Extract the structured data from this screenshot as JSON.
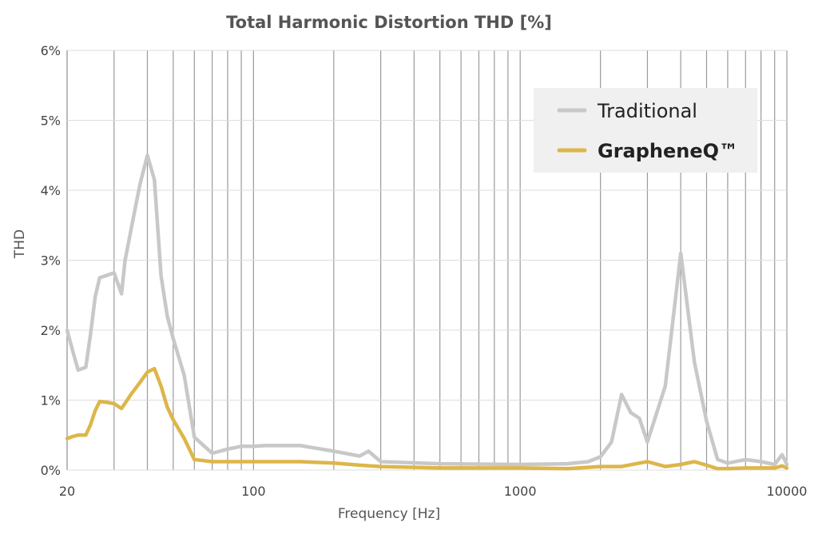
{
  "chart_data": {
    "type": "line",
    "title": "Total Harmonic Distortion THD [%]",
    "xlabel": "Frequency [Hz]",
    "ylabel": "THD",
    "xscale": "log",
    "xlim": [
      20,
      10000
    ],
    "ylim": [
      0,
      6
    ],
    "x_tick_labels": [
      {
        "value": 20,
        "label": "20"
      },
      {
        "value": 100,
        "label": "100"
      },
      {
        "value": 1000,
        "label": "1000"
      },
      {
        "value": 10000,
        "label": "10000"
      }
    ],
    "y_tick_labels": [
      {
        "value": 0,
        "label": "0%"
      },
      {
        "value": 1,
        "label": "1%"
      },
      {
        "value": 2,
        "label": "2%"
      },
      {
        "value": 3,
        "label": "3%"
      },
      {
        "value": 4,
        "label": "4%"
      },
      {
        "value": 5,
        "label": "5%"
      },
      {
        "value": 6,
        "label": "6%"
      }
    ],
    "grid": {
      "vertical": true,
      "horizontal": true
    },
    "legend_position": "top-right",
    "series": [
      {
        "name": "Traditional",
        "color": "#c8c8c8",
        "x": [
          20,
          21,
          22,
          23.5,
          24.5,
          25.5,
          26.5,
          28,
          30,
          32,
          33,
          35,
          37.5,
          40,
          42.5,
          45,
          47.5,
          50,
          55,
          60,
          70,
          80,
          90,
          100,
          110,
          150,
          200,
          250,
          270,
          300,
          500,
          1000,
          1500,
          1800,
          2000,
          2200,
          2400,
          2600,
          2800,
          3000,
          3500,
          4000,
          4500,
          5000,
          5500,
          6000,
          7000,
          8000,
          9000,
          9600,
          10000
        ],
        "y": [
          2.0,
          1.7,
          1.43,
          1.47,
          1.95,
          2.48,
          2.75,
          2.78,
          2.82,
          2.52,
          3.0,
          3.5,
          4.08,
          4.5,
          4.15,
          2.78,
          2.2,
          1.88,
          1.35,
          0.47,
          0.24,
          0.3,
          0.34,
          0.34,
          0.35,
          0.35,
          0.27,
          0.2,
          0.27,
          0.12,
          0.09,
          0.08,
          0.09,
          0.12,
          0.19,
          0.4,
          1.08,
          0.82,
          0.74,
          0.4,
          1.2,
          3.1,
          1.55,
          0.7,
          0.15,
          0.1,
          0.15,
          0.12,
          0.08,
          0.22,
          0.08
        ]
      },
      {
        "name": "GrapheneQ™",
        "color": "#ddb64a",
        "x": [
          20,
          21,
          22,
          23.5,
          24.5,
          25.5,
          26.5,
          28,
          30,
          32,
          35,
          37.5,
          40,
          42.5,
          45,
          47.5,
          50,
          55,
          60,
          70,
          80,
          90,
          100,
          150,
          200,
          250,
          300,
          500,
          1000,
          1500,
          2000,
          2400,
          2800,
          3000,
          3500,
          4000,
          4500,
          5000,
          5500,
          6000,
          7000,
          8000,
          9000,
          9600,
          10000
        ],
        "y": [
          0.45,
          0.48,
          0.5,
          0.5,
          0.65,
          0.85,
          0.98,
          0.97,
          0.95,
          0.88,
          1.1,
          1.25,
          1.4,
          1.45,
          1.2,
          0.9,
          0.72,
          0.45,
          0.15,
          0.12,
          0.12,
          0.12,
          0.12,
          0.12,
          0.1,
          0.07,
          0.05,
          0.03,
          0.03,
          0.02,
          0.05,
          0.05,
          0.1,
          0.12,
          0.05,
          0.08,
          0.12,
          0.07,
          0.02,
          0.02,
          0.03,
          0.03,
          0.03,
          0.06,
          0.03
        ]
      }
    ]
  }
}
